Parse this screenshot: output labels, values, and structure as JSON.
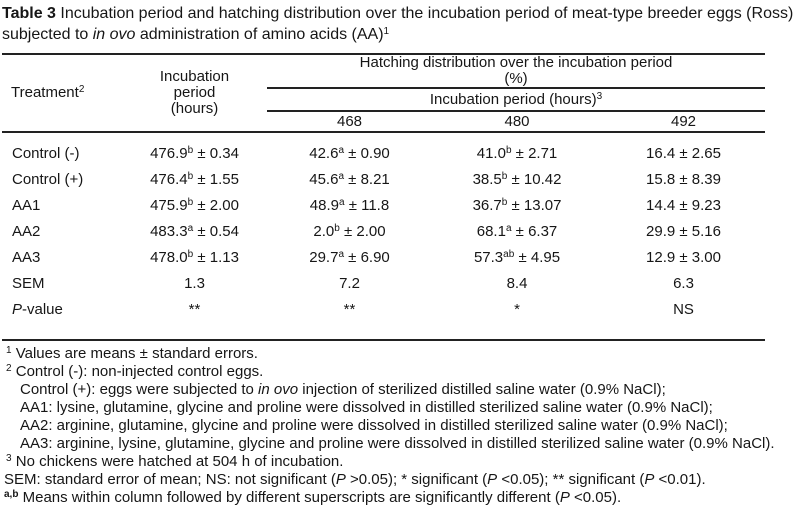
{
  "title": {
    "parts": [
      {
        "t": "Table 3",
        "b": true
      },
      {
        "t": " Incubation period and hatching distribution over the incubation period of meat-type breeder eggs (Ross) subjected to "
      },
      {
        "t": "in ovo",
        "i": true
      },
      {
        "t": " administration of amino acids (AA)"
      },
      {
        "t": "1",
        "sup": true
      }
    ]
  },
  "table": {
    "header": {
      "treatment": [
        {
          "t": "Treatment"
        },
        {
          "t": "2",
          "sup": true
        }
      ],
      "incubation_period": [
        {
          "t": "Incubation"
        },
        {
          "br": true
        },
        {
          "t": "period"
        },
        {
          "br": true
        },
        {
          "t": "(hours)"
        }
      ],
      "hatching_span": [
        {
          "t": "Hatching distribution over the incubation period"
        },
        {
          "br": true
        },
        {
          "t": "(%)"
        }
      ],
      "sub_span": [
        {
          "t": "Incubation period (hours)"
        },
        {
          "t": "3",
          "sup": true
        }
      ],
      "cols": [
        "468",
        "480",
        "492"
      ]
    },
    "rows": [
      {
        "label": [
          {
            "t": "Control (-)"
          }
        ],
        "cells": [
          [
            {
              "t": "476.9"
            },
            {
              "t": "b",
              "sup": true
            },
            {
              "t": " ± 0.34"
            }
          ],
          [
            {
              "t": "42.6"
            },
            {
              "t": "a",
              "sup": true
            },
            {
              "t": " ± 0.90"
            }
          ],
          [
            {
              "t": "41.0"
            },
            {
              "t": "b",
              "sup": true
            },
            {
              "t": " ± 2.71"
            }
          ],
          [
            {
              "t": "16.4 ± 2.65"
            }
          ]
        ]
      },
      {
        "label": [
          {
            "t": "Control (+)"
          }
        ],
        "cells": [
          [
            {
              "t": "476.4"
            },
            {
              "t": "b",
              "sup": true
            },
            {
              "t": " ± 1.55"
            }
          ],
          [
            {
              "t": "45.6"
            },
            {
              "t": "a",
              "sup": true
            },
            {
              "t": " ± 8.21"
            }
          ],
          [
            {
              "t": "38.5"
            },
            {
              "t": "b",
              "sup": true
            },
            {
              "t": " ± 10.42"
            }
          ],
          [
            {
              "t": "15.8 ± 8.39"
            }
          ]
        ]
      },
      {
        "label": [
          {
            "t": "AA1"
          }
        ],
        "cells": [
          [
            {
              "t": "475.9"
            },
            {
              "t": "b",
              "sup": true
            },
            {
              "t": " ± 2.00"
            }
          ],
          [
            {
              "t": "48.9"
            },
            {
              "t": "a",
              "sup": true
            },
            {
              "t": " ± 11.8"
            }
          ],
          [
            {
              "t": "36.7"
            },
            {
              "t": "b",
              "sup": true
            },
            {
              "t": " ± 13.07"
            }
          ],
          [
            {
              "t": "14.4 ± 9.23"
            }
          ]
        ]
      },
      {
        "label": [
          {
            "t": "AA2"
          }
        ],
        "cells": [
          [
            {
              "t": "483.3"
            },
            {
              "t": "a",
              "sup": true
            },
            {
              "t": " ± 0.54"
            }
          ],
          [
            {
              "t": "2.0"
            },
            {
              "t": "b",
              "sup": true
            },
            {
              "t": " ± 2.00"
            }
          ],
          [
            {
              "t": "68.1"
            },
            {
              "t": "a",
              "sup": true
            },
            {
              "t": " ± 6.37"
            }
          ],
          [
            {
              "t": "29.9 ± 5.16"
            }
          ]
        ]
      },
      {
        "label": [
          {
            "t": "AA3"
          }
        ],
        "cells": [
          [
            {
              "t": "478.0"
            },
            {
              "t": "b",
              "sup": true
            },
            {
              "t": " ± 1.13"
            }
          ],
          [
            {
              "t": "29.7"
            },
            {
              "t": "a",
              "sup": true
            },
            {
              "t": " ± 6.90"
            }
          ],
          [
            {
              "t": "57.3"
            },
            {
              "t": "ab",
              "sup": true
            },
            {
              "t": " ± 4.95"
            }
          ],
          [
            {
              "t": "12.9 ± 3.00"
            }
          ]
        ]
      },
      {
        "label": [
          {
            "t": "SEM"
          }
        ],
        "cells": [
          [
            {
              "t": "1.3"
            }
          ],
          [
            {
              "t": "7.2"
            }
          ],
          [
            {
              "t": "8.4"
            }
          ],
          [
            {
              "t": "6.3"
            }
          ]
        ]
      },
      {
        "label": [
          {
            "t": "P",
            "i": true
          },
          {
            "t": "-value"
          }
        ],
        "cells": [
          [
            {
              "t": "**"
            }
          ],
          [
            {
              "t": "**"
            }
          ],
          [
            {
              "t": "*"
            }
          ],
          [
            {
              "t": "NS"
            }
          ]
        ]
      }
    ]
  },
  "footnotes": [
    {
      "hang": true,
      "parts": [
        {
          "t": "1",
          "sup": true
        },
        {
          "t": " Values are means ± standard errors."
        }
      ]
    },
    {
      "hang": true,
      "parts": [
        {
          "t": "2",
          "sup": true
        },
        {
          "t": " Control (-): non-injected control eggs."
        }
      ]
    },
    {
      "parts": [
        {
          "t": "Control (+): eggs were subjected to "
        },
        {
          "t": "in ovo",
          "i": true
        },
        {
          "t": " injection of sterilized distilled saline water (0.9% NaCl);"
        }
      ]
    },
    {
      "parts": [
        {
          "t": "AA1: lysine, glutamine, glycine and proline were dissolved in distilled sterilized saline water (0.9% NaCl);"
        }
      ]
    },
    {
      "parts": [
        {
          "t": "AA2: arginine, glutamine, glycine and proline were dissolved in distilled sterilized saline water (0.9% NaCl);"
        }
      ]
    },
    {
      "justify": true,
      "parts": [
        {
          "t": "AA3: arginine, lysine, glutamine, glycine and proline were dissolved in distilled sterilized saline water (0.9% NaCl)."
        }
      ]
    },
    {
      "hang": true,
      "parts": [
        {
          "t": "3",
          "sup": true
        },
        {
          "t": " No chickens were hatched at 504 h of incubation."
        }
      ]
    },
    {
      "flush": true,
      "parts": [
        {
          "t": "SEM: standard error of mean; NS: not significant ("
        },
        {
          "t": "P",
          "i": true
        },
        {
          "t": " >0.05); * significant ("
        },
        {
          "t": "P",
          "i": true
        },
        {
          "t": " <0.05); ** significant ("
        },
        {
          "t": "P",
          "i": true
        },
        {
          "t": " <0.01)."
        }
      ]
    },
    {
      "flush": true,
      "parts": [
        {
          "t": "a,b",
          "sup": true,
          "b": true
        },
        {
          "t": " Means within column followed by different superscripts are significantly different ("
        },
        {
          "t": "P",
          "i": true
        },
        {
          "t": " <0.05)."
        }
      ]
    }
  ]
}
